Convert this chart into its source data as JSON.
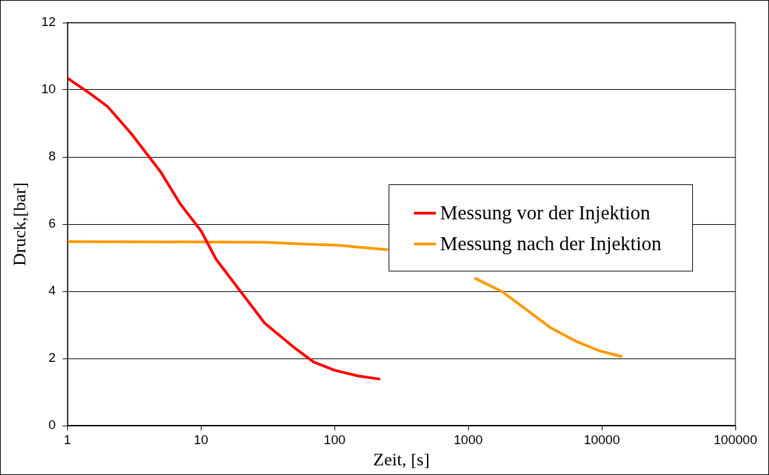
{
  "chart_data": {
    "type": "line",
    "xlabel": "Zeit, [s]",
    "ylabel": "Druck,[bar]",
    "log": "x",
    "grid": "y",
    "legend": "right",
    "line_style": "solid",
    "marker": "none",
    "xlim": [
      1,
      100000
    ],
    "xticks": [
      1,
      10,
      100,
      1000,
      10000,
      100000
    ],
    "ylim": [
      0,
      12
    ],
    "yticks": [
      0,
      2,
      4,
      6,
      8,
      10,
      12
    ],
    "series": [
      {
        "name": "Messung vor der Injektion",
        "color": "#ff0000",
        "x": [
          1,
          1.5,
          2,
          3,
          5,
          7,
          10,
          13,
          20,
          30,
          50,
          70,
          100,
          150,
          215
        ],
        "values": [
          10.35,
          9.87,
          9.5,
          8.7,
          7.55,
          6.6,
          5.8,
          4.95,
          3.97,
          3.05,
          2.32,
          1.89,
          1.65,
          1.48,
          1.39
        ]
      },
      {
        "name": "Messung nach der Injektion",
        "color": "#ff9900",
        "x": [
          1,
          10,
          30,
          67,
          100,
          247,
          400,
          1135,
          1795,
          4120,
          6280,
          9560,
          13960
        ],
        "values": [
          5.48,
          5.47,
          5.46,
          5.4,
          5.38,
          5.24,
          null,
          4.38,
          3.99,
          2.92,
          2.53,
          2.23,
          2.06
        ]
      }
    ]
  }
}
